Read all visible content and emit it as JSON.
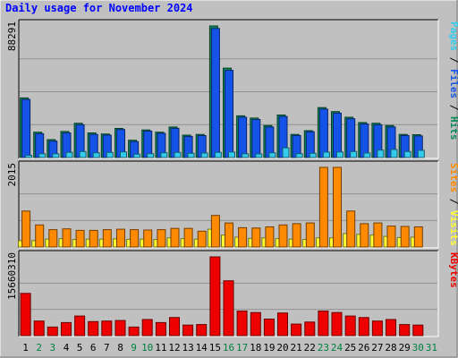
{
  "title": "Daily usage for November 2024",
  "colors": {
    "background": "#c0c0c0",
    "panel": "#c0c0c0",
    "hits": "#0a8a5a",
    "files": "#1553e8",
    "pages": "#33ccee",
    "visits": "#ffff33",
    "sites": "#ff8a00",
    "kbytes": "#ee0000",
    "weekday_label": "#000000",
    "weekend_label": "#008040"
  },
  "chart_data": [
    {
      "type": "bar",
      "title": "Daily usage for November 2024",
      "x_tick_labels": [
        "1",
        "2",
        "3",
        "4",
        "5",
        "6",
        "7",
        "8",
        "9",
        "10",
        "11",
        "12",
        "13",
        "14",
        "15",
        "16",
        "17",
        "18",
        "19",
        "20",
        "21",
        "22",
        "23",
        "24",
        "25",
        "26",
        "27",
        "28",
        "29",
        "30",
        "31"
      ],
      "weekend_days": [
        "2",
        "3",
        "9",
        "10",
        "16",
        "17",
        "23",
        "24",
        "30",
        "31"
      ],
      "panels": [
        {
          "name": "hits-files-pages",
          "axis_label": "88291",
          "ymax": 88291,
          "legend": [
            {
              "key": "pages",
              "text": "Pages"
            },
            {
              "sep": " / "
            },
            {
              "key": "files",
              "text": "Files"
            },
            {
              "sep": " / "
            },
            {
              "key": "hits",
              "text": "Hits"
            }
          ],
          "series": [
            {
              "name": "Hits",
              "color_key": "hits",
              "values": [
                40000,
                17000,
                12000,
                17500,
                23000,
                16500,
                15800,
                19500,
                11600,
                18500,
                17000,
                20500,
                15000,
                15500,
                88291,
                60000,
                28000,
                26500,
                21500,
                28500,
                15500,
                18000,
                33500,
                30800,
                27000,
                23500,
                23000,
                21500,
                15500,
                15300,
                0
              ]
            },
            {
              "name": "Files",
              "color_key": "files",
              "values": [
                39000,
                16000,
                11000,
                16500,
                22000,
                15500,
                15000,
                18800,
                10700,
                17700,
                16200,
                19600,
                14200,
                14700,
                86600,
                58500,
                27000,
                25500,
                20500,
                27500,
                14800,
                17300,
                32500,
                29800,
                26000,
                22500,
                22000,
                20500,
                14800,
                14500,
                0
              ]
            },
            {
              "name": "Pages",
              "color_key": "pages",
              "values": [
                1500,
                2500,
                2500,
                3500,
                4000,
                3200,
                3400,
                3800,
                2200,
                2600,
                3200,
                3400,
                2800,
                3000,
                3500,
                3700,
                2500,
                2400,
                3200,
                6500,
                2600,
                2800,
                3600,
                3700,
                4000,
                3000,
                5000,
                5400,
                4000,
                4800,
                0
              ]
            }
          ]
        },
        {
          "name": "visits-sites",
          "axis_label": "2015",
          "ymax": 2015,
          "legend": [
            {
              "key": "sites",
              "text": "Sites"
            },
            {
              "sep": " / "
            },
            {
              "key": "visits",
              "text": "Visits"
            }
          ],
          "series": [
            {
              "name": "Visits",
              "color_key": "visits",
              "values": [
                160,
                160,
                200,
                210,
                190,
                200,
                200,
                205,
                195,
                200,
                190,
                230,
                210,
                200,
                450,
                300,
                250,
                220,
                230,
                210,
                200,
                190,
                230,
                230,
                340,
                320,
                300,
                270,
                240,
                250,
                0
              ]
            },
            {
              "name": "Sites",
              "color_key": "sites",
              "values": [
                910,
                560,
                440,
                460,
                420,
                420,
                440,
                450,
                440,
                430,
                440,
                470,
                470,
                400,
                800,
                610,
                490,
                480,
                510,
                560,
                590,
                610,
                2015,
                2015,
                910,
                590,
                610,
                530,
                520,
                510,
                0
              ]
            }
          ]
        },
        {
          "name": "kbytes",
          "axis_label": "15660310",
          "ymax": 15660310,
          "legend": [
            {
              "key": "kbytes",
              "text": "KBytes"
            }
          ],
          "series": [
            {
              "name": "KBytes",
              "color_key": "kbytes",
              "values": [
                8400000,
                2900000,
                1700000,
                2600000,
                3900000,
                2800000,
                2900000,
                3000000,
                1700000,
                3200000,
                2600000,
                3600000,
                2100000,
                2200000,
                15660310,
                10900000,
                4900000,
                4600000,
                3300000,
                4500000,
                2300000,
                2700000,
                4900000,
                4600000,
                3900000,
                3600000,
                2900000,
                3200000,
                2200000,
                2100000,
                0
              ]
            }
          ]
        }
      ]
    }
  ]
}
